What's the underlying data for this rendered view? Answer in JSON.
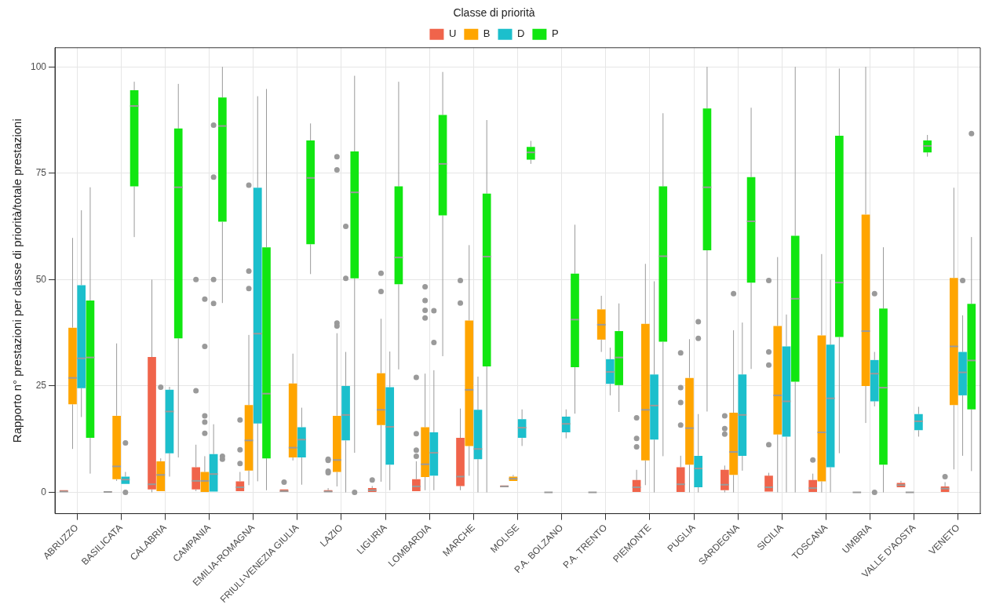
{
  "chart_data": {
    "type": "box",
    "ylabel": "Rapporto n° prestazioni per classe di priorità/totale prestazioni",
    "legend_title": "Classe di priorità",
    "legend": "top",
    "grid": true,
    "ylim": [
      -5,
      104.5
    ],
    "yticks": [
      0,
      25,
      50,
      75,
      100
    ],
    "categories": [
      "ABRUZZO",
      "BASILICATA",
      "CALABRIA",
      "CAMPANIA",
      "EMILIA-ROMAGNA",
      "FRIULI-VENEZIA GIULIA",
      "LAZIO",
      "LIGURIA",
      "LOMBARDIA",
      "MARCHE",
      "MOLISE",
      "P.A. BOLZANO",
      "P.A. TRENTO",
      "PIEMONTE",
      "PUGLIA",
      "SARDEGNA",
      "SICILIA",
      "TOSCANA",
      "UMBRIA",
      "VALLE D'AOSTA",
      "VENETO"
    ],
    "series": [
      {
        "name": "U",
        "color": "#f0644b",
        "boxes": [
          {
            "low": 0,
            "q1": 0,
            "median": 0.2,
            "q3": 0.5,
            "high": 0.8
          },
          {
            "low": 0,
            "q1": 0,
            "median": 0.1,
            "q3": 0.2,
            "high": 0.4
          },
          {
            "low": 0,
            "q1": 0.7,
            "median": 1.9,
            "q3": 31.8,
            "high": 50
          },
          {
            "low": 0.3,
            "q1": 0.7,
            "median": 2.7,
            "q3": 5.9,
            "high": 11.2,
            "outliers": [
              50,
              23.9
            ]
          },
          {
            "low": 0,
            "q1": 0.3,
            "median": 1.2,
            "q3": 2.6,
            "high": 4.8,
            "outliers": [
              17,
              10,
              6.8
            ]
          },
          {
            "low": 0,
            "q1": 0,
            "median": 0.3,
            "q3": 0.7,
            "high": 1,
            "outliers": [
              2.4
            ]
          },
          {
            "low": 0,
            "q1": 0,
            "median": 0.2,
            "q3": 0.5,
            "high": 1,
            "outliers": [
              7.8,
              7.5,
              5,
              4.6
            ]
          },
          {
            "low": 0,
            "q1": 0,
            "median": 0.5,
            "q3": 1,
            "high": 1.5,
            "outliers": [
              2.9
            ]
          },
          {
            "low": 0,
            "q1": 0.3,
            "median": 1.4,
            "q3": 3.1,
            "high": 7.3,
            "outliers": [
              13.8,
              9.9,
              8.5,
              27
            ]
          },
          {
            "low": 0.5,
            "q1": 1.5,
            "median": 3.7,
            "q3": 12.8,
            "high": 19.7,
            "outliers": [
              49.8,
              44.5
            ]
          },
          {
            "low": 1,
            "q1": 1.2,
            "median": 1.4,
            "q3": 1.6,
            "high": 1.8
          },
          {
            "low": 0,
            "q1": 0,
            "median": 0,
            "q3": 0.1,
            "high": 0.2
          },
          {
            "low": 0,
            "q1": 0,
            "median": 0,
            "q3": 0.1,
            "high": 0.2
          },
          {
            "low": 0,
            "q1": 0.1,
            "median": 1.2,
            "q3": 2.9,
            "high": 5.3,
            "outliers": [
              17.5,
              12.7,
              10.7
            ]
          },
          {
            "low": 0,
            "q1": 0,
            "median": 1.9,
            "q3": 5.9,
            "high": 8.6,
            "outliers": [
              32.8,
              24.6,
              21.1,
              15.8
            ]
          },
          {
            "low": 0,
            "q1": 0.5,
            "median": 1.8,
            "q3": 5.3,
            "high": 6.3,
            "outliers": [
              18,
              15,
              13.7
            ]
          },
          {
            "low": 0,
            "q1": 0.2,
            "median": 1.2,
            "q3": 3.9,
            "high": 4.6,
            "outliers": [
              11.2,
              29.9,
              33,
              49.8
            ]
          },
          {
            "low": 0,
            "q1": 0,
            "median": 1,
            "q3": 2.9,
            "high": 4.4,
            "outliers": [
              7.6
            ]
          },
          {
            "low": 0,
            "q1": 0,
            "median": 0,
            "q3": 0.1,
            "high": 0.2
          },
          {
            "low": 1,
            "q1": 1.2,
            "median": 1.7,
            "q3": 2.2,
            "high": 2.7
          },
          {
            "low": 0,
            "q1": 0,
            "median": 0.9,
            "q3": 1.4,
            "high": 2.4,
            "outliers": [
              3.7
            ]
          }
        ]
      },
      {
        "name": "B",
        "color": "#ffa500",
        "boxes": [
          {
            "low": 10.2,
            "q1": 20.7,
            "median": 26.9,
            "q3": 38.7,
            "high": 59.8
          },
          {
            "low": 2.7,
            "q1": 3.1,
            "median": 6.1,
            "q3": 18,
            "high": 35
          },
          {
            "low": 0,
            "q1": 0.3,
            "median": 4.1,
            "q3": 7.3,
            "high": 8,
            "outliers": [
              24.7
            ]
          },
          {
            "low": 0,
            "q1": 0,
            "median": 2.7,
            "q3": 4.8,
            "high": 8.5,
            "outliers": [
              45.4,
              34.3,
              18,
              16.5,
              13.9
            ]
          },
          {
            "low": 1.7,
            "q1": 5.1,
            "median": 12.2,
            "q3": 20.5,
            "high": 37,
            "outliers": [
              72.2,
              52,
              47.9
            ]
          },
          {
            "low": 7.5,
            "q1": 8.2,
            "median": 10.5,
            "q3": 25.6,
            "high": 32.6
          },
          {
            "low": 1.4,
            "q1": 4.8,
            "median": 7.6,
            "q3": 18,
            "high": 37.4,
            "outliers": [
              39.8,
              39.1,
              78.9,
              75.8
            ]
          },
          {
            "low": 2.5,
            "q1": 15.8,
            "median": 19.4,
            "q3": 28,
            "high": 40.8,
            "outliers": [
              51.5,
              47.2
            ]
          },
          {
            "low": 0.5,
            "q1": 3.6,
            "median": 6.6,
            "q3": 15.3,
            "high": 27.9,
            "outliers": [
              48.3,
              45.1,
              42.8,
              41
            ]
          },
          {
            "low": 3.9,
            "q1": 10.9,
            "median": 24.1,
            "q3": 40.4,
            "high": 58.1
          },
          {
            "low": 2.4,
            "q1": 2.7,
            "median": 3.2,
            "q3": 3.7,
            "high": 4.1
          },
          null,
          {
            "low": 33,
            "q1": 35.9,
            "median": 39.4,
            "q3": 43,
            "high": 46.2
          },
          {
            "low": 1.7,
            "q1": 7.5,
            "median": 19.4,
            "q3": 39.6,
            "high": 53.7
          },
          {
            "low": 0,
            "q1": 6.5,
            "median": 15.1,
            "q3": 26.9,
            "high": 36
          },
          {
            "low": 0,
            "q1": 4.1,
            "median": 9.5,
            "q3": 18.7,
            "high": 38.1,
            "outliers": [
              46.7
            ]
          },
          {
            "low": 0,
            "q1": 13.6,
            "median": 22.8,
            "q3": 39.1,
            "high": 55.3
          },
          {
            "low": 0,
            "q1": 2.6,
            "median": 14.1,
            "q3": 36.9,
            "high": 56
          },
          {
            "low": 16.3,
            "q1": 25,
            "median": 37.9,
            "q3": 65.3,
            "high": 100
          },
          {
            "low": 0,
            "q1": 0,
            "median": 0,
            "q3": 0.1,
            "high": 0.2
          },
          {
            "low": 5.4,
            "q1": 20.5,
            "median": 34.3,
            "q3": 50.4,
            "high": 71.6
          }
        ]
      },
      {
        "name": "D",
        "color": "#1cbfcc",
        "boxes": [
          {
            "low": 17.7,
            "q1": 24.5,
            "median": 31.5,
            "q3": 48.7,
            "high": 66.3
          },
          {
            "low": 1.7,
            "q1": 2,
            "median": 3,
            "q3": 3.7,
            "high": 4.8,
            "outliers": [
              11.6,
              0
            ]
          },
          {
            "low": 3.7,
            "q1": 9.2,
            "median": 19,
            "q3": 24.1,
            "high": 24.8
          },
          {
            "low": 0,
            "q1": 0.2,
            "median": 4.3,
            "q3": 9,
            "high": 16,
            "outliers": [
              86.3,
              74.1,
              50,
              44.4
            ]
          },
          {
            "low": 2.6,
            "q1": 16.2,
            "median": 37.3,
            "q3": 71.6,
            "high": 93.1
          },
          {
            "low": 1.8,
            "q1": 8.2,
            "median": 12.4,
            "q3": 15.3,
            "high": 19.9
          },
          {
            "low": 0,
            "q1": 12.2,
            "median": 18.2,
            "q3": 25,
            "high": 33,
            "outliers": [
              62.5,
              50.3
            ]
          },
          {
            "low": 0.5,
            "q1": 6.5,
            "median": 15.4,
            "q3": 24.7,
            "high": 33.1
          },
          {
            "low": 0.5,
            "q1": 3.9,
            "median": 9.3,
            "q3": 14.1,
            "high": 28.7,
            "outliers": [
              42.7,
              35.2
            ]
          },
          {
            "low": 0,
            "q1": 7.8,
            "median": 10.2,
            "q3": 19.4,
            "high": 27.2
          },
          {
            "low": 10.9,
            "q1": 12.8,
            "median": 15.2,
            "q3": 17.2,
            "high": 19.5
          },
          {
            "low": 12.7,
            "q1": 14.1,
            "median": 16.1,
            "q3": 17.8,
            "high": 19.5
          },
          {
            "low": 22.8,
            "q1": 25.5,
            "median": 28.3,
            "q3": 31.3,
            "high": 34
          },
          {
            "low": 0,
            "q1": 12.4,
            "median": 20.4,
            "q3": 27.7,
            "high": 49.6
          },
          {
            "low": 0,
            "q1": 1.2,
            "median": 5.6,
            "q3": 8.6,
            "high": 18.4,
            "outliers": [
              40.1,
              36.2
            ]
          },
          {
            "low": 5.1,
            "q1": 8.6,
            "median": 18.2,
            "q3": 27.7,
            "high": 39.9
          },
          {
            "low": 0,
            "q1": 13.1,
            "median": 21.4,
            "q3": 34.3,
            "high": 41.8
          },
          {
            "low": 0,
            "q1": 5.9,
            "median": 22.1,
            "q3": 34.7,
            "high": 50
          },
          {
            "low": 20.2,
            "q1": 21.4,
            "median": 27.9,
            "q3": 31.1,
            "high": 33,
            "outliers": [
              46.7,
              0
            ]
          },
          {
            "low": 13.1,
            "q1": 14.6,
            "median": 16.7,
            "q3": 18.4,
            "high": 20.1
          },
          {
            "low": 8.6,
            "q1": 22.8,
            "median": 28.2,
            "q3": 33,
            "high": 41.6,
            "outliers": [
              49.8
            ]
          }
        ]
      },
      {
        "name": "P",
        "color": "#11e611",
        "boxes": [
          {
            "low": 4.4,
            "q1": 12.8,
            "median": 31.7,
            "q3": 45.1,
            "high": 71.7
          },
          {
            "low": 60,
            "q1": 71.9,
            "median": 90.8,
            "q3": 94.5,
            "high": 96.5
          },
          {
            "low": 8.2,
            "q1": 36.2,
            "median": 71.7,
            "q3": 85.5,
            "high": 96
          },
          {
            "low": 44.5,
            "q1": 63.6,
            "median": 86.1,
            "q3": 92.8,
            "high": 100,
            "outliers": [
              8.5,
              7.8
            ]
          },
          {
            "low": 0.5,
            "q1": 8,
            "median": 23.2,
            "q3": 57.6,
            "high": 94.8
          },
          {
            "low": 51.3,
            "q1": 58.3,
            "median": 73.9,
            "q3": 82.7,
            "high": 86.7
          },
          {
            "low": 9.3,
            "q1": 50.3,
            "median": 70.5,
            "q3": 80.1,
            "high": 97.9,
            "outliers": [
              0
            ]
          },
          {
            "low": 28.9,
            "q1": 48.9,
            "median": 55.2,
            "q3": 71.9,
            "high": 96.5
          },
          {
            "low": 32,
            "q1": 65.1,
            "median": 77.2,
            "q3": 88.7,
            "high": 98.8
          },
          {
            "low": 0,
            "q1": 29.6,
            "median": 55.4,
            "q3": 70.2,
            "high": 87.5
          },
          {
            "low": 77.2,
            "q1": 78.2,
            "median": 79.9,
            "q3": 81.2,
            "high": 82.6
          },
          {
            "low": 18.5,
            "q1": 29.4,
            "median": 40.6,
            "q3": 51.4,
            "high": 62.9
          },
          {
            "low": 18.9,
            "q1": 25.2,
            "median": 31.7,
            "q3": 37.9,
            "high": 44.4
          },
          {
            "low": 8.5,
            "q1": 35.4,
            "median": 55.5,
            "q3": 71.9,
            "high": 89.1
          },
          {
            "low": 19,
            "q1": 56.9,
            "median": 71.7,
            "q3": 90.2,
            "high": 100
          },
          {
            "low": 29,
            "q1": 49.3,
            "median": 63.7,
            "q3": 74.1,
            "high": 90.4
          },
          {
            "low": 0,
            "q1": 26,
            "median": 45.5,
            "q3": 60.3,
            "high": 100
          },
          {
            "low": 9.2,
            "q1": 36.5,
            "median": 49.3,
            "q3": 83.8,
            "high": 99.6
          },
          {
            "low": 0,
            "q1": 6.5,
            "median": 24.6,
            "q3": 43.2,
            "high": 57.6
          },
          {
            "low": 78.9,
            "q1": 79.9,
            "median": 81.4,
            "q3": 82.7,
            "high": 84
          },
          {
            "low": 5,
            "q1": 19.5,
            "median": 31,
            "q3": 44.3,
            "high": 60,
            "outliers": [
              84.3
            ]
          }
        ]
      }
    ]
  }
}
